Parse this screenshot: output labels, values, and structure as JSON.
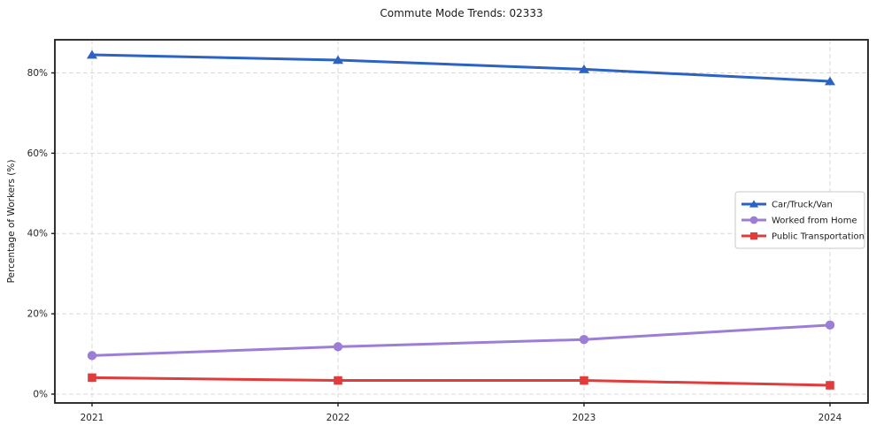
{
  "title": "Commute Mode Trends: 02333",
  "chart_data": {
    "type": "line",
    "title": "Commute Mode Trends: 02333",
    "xlabel": "",
    "ylabel": "Percentage of Workers (%)",
    "categories": [
      "2021",
      "2022",
      "2023",
      "2024"
    ],
    "series": [
      {
        "name": "Car/Truck/Van",
        "values": [
          84.5,
          83.2,
          80.9,
          77.9
        ],
        "color": "#2b62c4",
        "marker": "triangle"
      },
      {
        "name": "Worked from Home",
        "values": [
          9.6,
          11.8,
          13.6,
          17.2
        ],
        "color": "#9d7ed6",
        "marker": "circle"
      },
      {
        "name": "Public Transportation",
        "values": [
          4.1,
          3.4,
          3.4,
          2.2
        ],
        "color": "#e23b3b",
        "marker": "square"
      }
    ],
    "yticks": [
      0,
      20,
      40,
      60,
      80
    ],
    "ytick_labels": [
      "0%",
      "20%",
      "40%",
      "60%",
      "80%"
    ],
    "ylim": [
      -2.4,
      88.0
    ],
    "grid": true,
    "grid_style": "dashed",
    "legend_position": "center-right"
  },
  "colors": {
    "background": "#ffffff",
    "grid": "#d9d9d9",
    "spine": "#1c1c1c",
    "tick_text": "#262626",
    "title_text": "#1a1a1a",
    "legend_border": "#c9c9c9",
    "legend_fill": "#ffffff"
  }
}
